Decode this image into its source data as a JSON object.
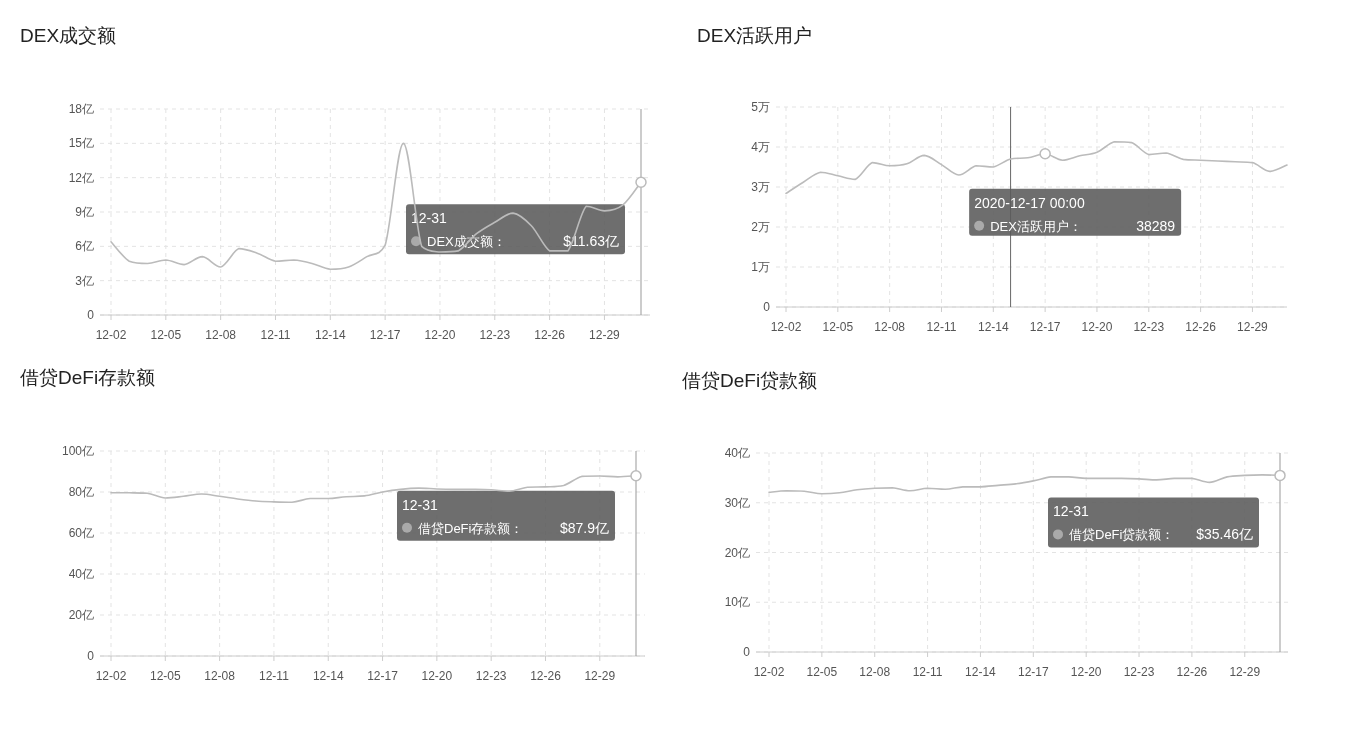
{
  "chart_data": [
    {
      "type": "line",
      "title": "DEX成交额",
      "color": "#bbbbbb",
      "marker": "none",
      "grid": true,
      "x": [
        "--12-02",
        "--12-03",
        "--12-04",
        "--12-05",
        "--12-06",
        "--12-07",
        "--12-08",
        "--12-09",
        "--12-10",
        "--12-11",
        "--12-12",
        "--12-13",
        "--12-14",
        "--12-15",
        "--12-16",
        "--12-17",
        "--12-18",
        "--12-19",
        "--12-20",
        "--12-21",
        "--12-22",
        "--12-23",
        "--12-24",
        "--12-25",
        "--12-26",
        "--12-27",
        "--12-28",
        "--12-29",
        "--12-30",
        "--12-31"
      ],
      "values": [
        6.4,
        4.7,
        4.5,
        4.8,
        4.4,
        5.1,
        4.2,
        5.8,
        5.4,
        4.7,
        4.8,
        4.5,
        4.0,
        4.2,
        5.1,
        6.1,
        15.0,
        6.0,
        5.5,
        5.6,
        7.1,
        8.1,
        8.9,
        7.8,
        5.6,
        5.6,
        9.5,
        9.1,
        9.6,
        11.6
      ],
      "xlim": [
        "--12-02",
        "--12-31"
      ],
      "xticks": [
        {
          "value": "--12-02",
          "label": "12-02"
        },
        {
          "value": "--12-05",
          "label": "12-05"
        },
        {
          "value": "--12-08",
          "label": "12-08"
        },
        {
          "value": "--12-11",
          "label": "12-11"
        },
        {
          "value": "--12-14",
          "label": "12-14"
        },
        {
          "value": "--12-17",
          "label": "12-17"
        },
        {
          "value": "--12-20",
          "label": "12-20"
        },
        {
          "value": "--12-23",
          "label": "12-23"
        },
        {
          "value": "--12-26",
          "label": "12-26"
        },
        {
          "value": "--12-29",
          "label": "12-29"
        }
      ],
      "ylim": [
        0,
        18
      ],
      "yticks": [
        {
          "value": 0,
          "label": "0"
        },
        {
          "value": 3,
          "label": "3亿"
        },
        {
          "value": 6,
          "label": "6亿"
        },
        {
          "value": 9,
          "label": "9亿"
        },
        {
          "value": 12,
          "label": "12亿"
        },
        {
          "value": 15,
          "label": "15亿"
        },
        {
          "value": 18,
          "label": "18亿"
        }
      ],
      "ref_lines": [
        {
          "axis": "x",
          "value": "--12-31",
          "color": "#999999"
        }
      ],
      "annotations": [
        "12-31",
        "DEX成交额：",
        "$11.63亿"
      ]
    },
    {
      "type": "line",
      "title": "DEX活跃用户",
      "color": "#bbbbbb",
      "marker": "none",
      "grid": true,
      "x": [
        "--12-02",
        "--12-03",
        "--12-04",
        "--12-05",
        "--12-06",
        "--12-07",
        "--12-08",
        "--12-09",
        "--12-10",
        "--12-11",
        "--12-12",
        "--12-13",
        "--12-14",
        "--12-15",
        "--12-16",
        "--12-17",
        "--12-18",
        "--12-19",
        "--12-20",
        "--12-21",
        "--12-22",
        "--12-23",
        "--12-24",
        "--12-25",
        "--12-26",
        "--12-27",
        "--12-28",
        "--12-29",
        "--12-30",
        "--12-31"
      ],
      "values": [
        2.84,
        3.12,
        3.37,
        3.28,
        3.19,
        3.61,
        3.53,
        3.58,
        3.79,
        3.56,
        3.3,
        3.53,
        3.5,
        3.7,
        3.73,
        3.83,
        3.67,
        3.78,
        3.87,
        4.13,
        4.11,
        3.81,
        3.85,
        3.69,
        3.67,
        3.65,
        3.63,
        3.61,
        3.39,
        3.55
      ],
      "xlim": [
        "--12-02",
        "--12-31"
      ],
      "xticks": [
        {
          "value": "--12-02",
          "label": "12-02"
        },
        {
          "value": "--12-05",
          "label": "12-05"
        },
        {
          "value": "--12-08",
          "label": "12-08"
        },
        {
          "value": "--12-11",
          "label": "12-11"
        },
        {
          "value": "--12-14",
          "label": "12-14"
        },
        {
          "value": "--12-17",
          "label": "12-17"
        },
        {
          "value": "--12-20",
          "label": "12-20"
        },
        {
          "value": "--12-23",
          "label": "12-23"
        },
        {
          "value": "--12-26",
          "label": "12-26"
        },
        {
          "value": "--12-29",
          "label": "12-29"
        }
      ],
      "ylim": [
        0,
        5
      ],
      "yticks": [
        {
          "value": 0,
          "label": "0"
        },
        {
          "value": 1,
          "label": "1万"
        },
        {
          "value": 2,
          "label": "2万"
        },
        {
          "value": 3,
          "label": "3万"
        },
        {
          "value": 4,
          "label": "4万"
        },
        {
          "value": 5,
          "label": "5万"
        }
      ],
      "ref_lines": [
        {
          "axis": "x",
          "value": "--12-15",
          "color": "#666666"
        }
      ],
      "annotations": [
        "2020-12-17 00:00",
        "DEX活跃用户：",
        "38289"
      ]
    },
    {
      "type": "line",
      "title": "借贷DeFi存款额",
      "color": "#bbbbbb",
      "marker": "none",
      "grid": true,
      "x": [
        "--12-02",
        "--12-03",
        "--12-04",
        "--12-05",
        "--12-06",
        "--12-07",
        "--12-08",
        "--12-09",
        "--12-10",
        "--12-11",
        "--12-12",
        "--12-13",
        "--12-14",
        "--12-15",
        "--12-16",
        "--12-17",
        "--12-18",
        "--12-19",
        "--12-20",
        "--12-21",
        "--12-22",
        "--12-23",
        "--12-24",
        "--12-25",
        "--12-26",
        "--12-27",
        "--12-28",
        "--12-29",
        "--12-30",
        "--12-31"
      ],
      "values": [
        79.6,
        79.6,
        79.4,
        77.1,
        77.9,
        79.0,
        77.9,
        76.6,
        75.6,
        75.2,
        75.0,
        76.8,
        76.8,
        77.7,
        78.1,
        80.0,
        81.3,
        81.9,
        81.5,
        81.3,
        81.3,
        81.1,
        80.4,
        82.3,
        82.5,
        83.2,
        87.6,
        87.8,
        87.4,
        87.9
      ],
      "xlim": [
        "--12-02",
        "--12-31"
      ],
      "xticks": [
        {
          "value": "--12-02",
          "label": "12-02"
        },
        {
          "value": "--12-05",
          "label": "12-05"
        },
        {
          "value": "--12-08",
          "label": "12-08"
        },
        {
          "value": "--12-11",
          "label": "12-11"
        },
        {
          "value": "--12-14",
          "label": "12-14"
        },
        {
          "value": "--12-17",
          "label": "12-17"
        },
        {
          "value": "--12-20",
          "label": "12-20"
        },
        {
          "value": "--12-23",
          "label": "12-23"
        },
        {
          "value": "--12-26",
          "label": "12-26"
        },
        {
          "value": "--12-29",
          "label": "12-29"
        }
      ],
      "ylim": [
        0,
        100
      ],
      "yticks": [
        {
          "value": 0,
          "label": "0"
        },
        {
          "value": 20,
          "label": "20亿"
        },
        {
          "value": 40,
          "label": "40亿"
        },
        {
          "value": 60,
          "label": "60亿"
        },
        {
          "value": 80,
          "label": "80亿"
        },
        {
          "value": 100,
          "label": "100亿"
        }
      ],
      "ref_lines": [
        {
          "axis": "x",
          "value": "--12-31",
          "color": "#999999"
        }
      ],
      "annotations": [
        "12-31",
        "借贷DeFi存款额：",
        "$87.9亿"
      ]
    },
    {
      "type": "line",
      "title": "借贷DeFi贷款额",
      "color": "#bbbbbb",
      "marker": "none",
      "grid": true,
      "x": [
        "--12-02",
        "--12-03",
        "--12-04",
        "--12-05",
        "--12-06",
        "--12-07",
        "--12-08",
        "--12-09",
        "--12-10",
        "--12-11",
        "--12-12",
        "--12-13",
        "--12-14",
        "--12-15",
        "--12-16",
        "--12-17",
        "--12-18",
        "--12-19",
        "--12-20",
        "--12-21",
        "--12-22",
        "--12-23",
        "--12-24",
        "--12-25",
        "--12-26",
        "--12-27",
        "--12-28",
        "--12-29",
        "--12-30",
        "--12-31"
      ],
      "values": [
        32.1,
        32.4,
        32.3,
        31.8,
        32.0,
        32.6,
        32.9,
        33.0,
        32.4,
        32.9,
        32.7,
        33.2,
        33.2,
        33.5,
        33.8,
        34.4,
        35.2,
        35.2,
        34.9,
        34.9,
        34.9,
        34.8,
        34.6,
        34.9,
        34.9,
        34.1,
        35.2,
        35.5,
        35.6,
        35.5
      ],
      "xlim": [
        "--12-02",
        "--12-31"
      ],
      "xticks": [
        {
          "value": "--12-02",
          "label": "12-02"
        },
        {
          "value": "--12-05",
          "label": "12-05"
        },
        {
          "value": "--12-08",
          "label": "12-08"
        },
        {
          "value": "--12-11",
          "label": "12-11"
        },
        {
          "value": "--12-14",
          "label": "12-14"
        },
        {
          "value": "--12-17",
          "label": "12-17"
        },
        {
          "value": "--12-20",
          "label": "12-20"
        },
        {
          "value": "--12-23",
          "label": "12-23"
        },
        {
          "value": "--12-26",
          "label": "12-26"
        },
        {
          "value": "--12-29",
          "label": "12-29"
        }
      ],
      "ylim": [
        0,
        40
      ],
      "yticks": [
        {
          "value": 0,
          "label": "0"
        },
        {
          "value": 10,
          "label": "10亿"
        },
        {
          "value": 20,
          "label": "20亿"
        },
        {
          "value": 30,
          "label": "30亿"
        },
        {
          "value": 40,
          "label": "40亿"
        }
      ],
      "ref_lines": [
        {
          "axis": "x",
          "value": "--12-31",
          "color": "#999999"
        }
      ],
      "annotations": [
        "12-31",
        "借贷DeFi贷款额：",
        "$35.46亿"
      ]
    }
  ]
}
